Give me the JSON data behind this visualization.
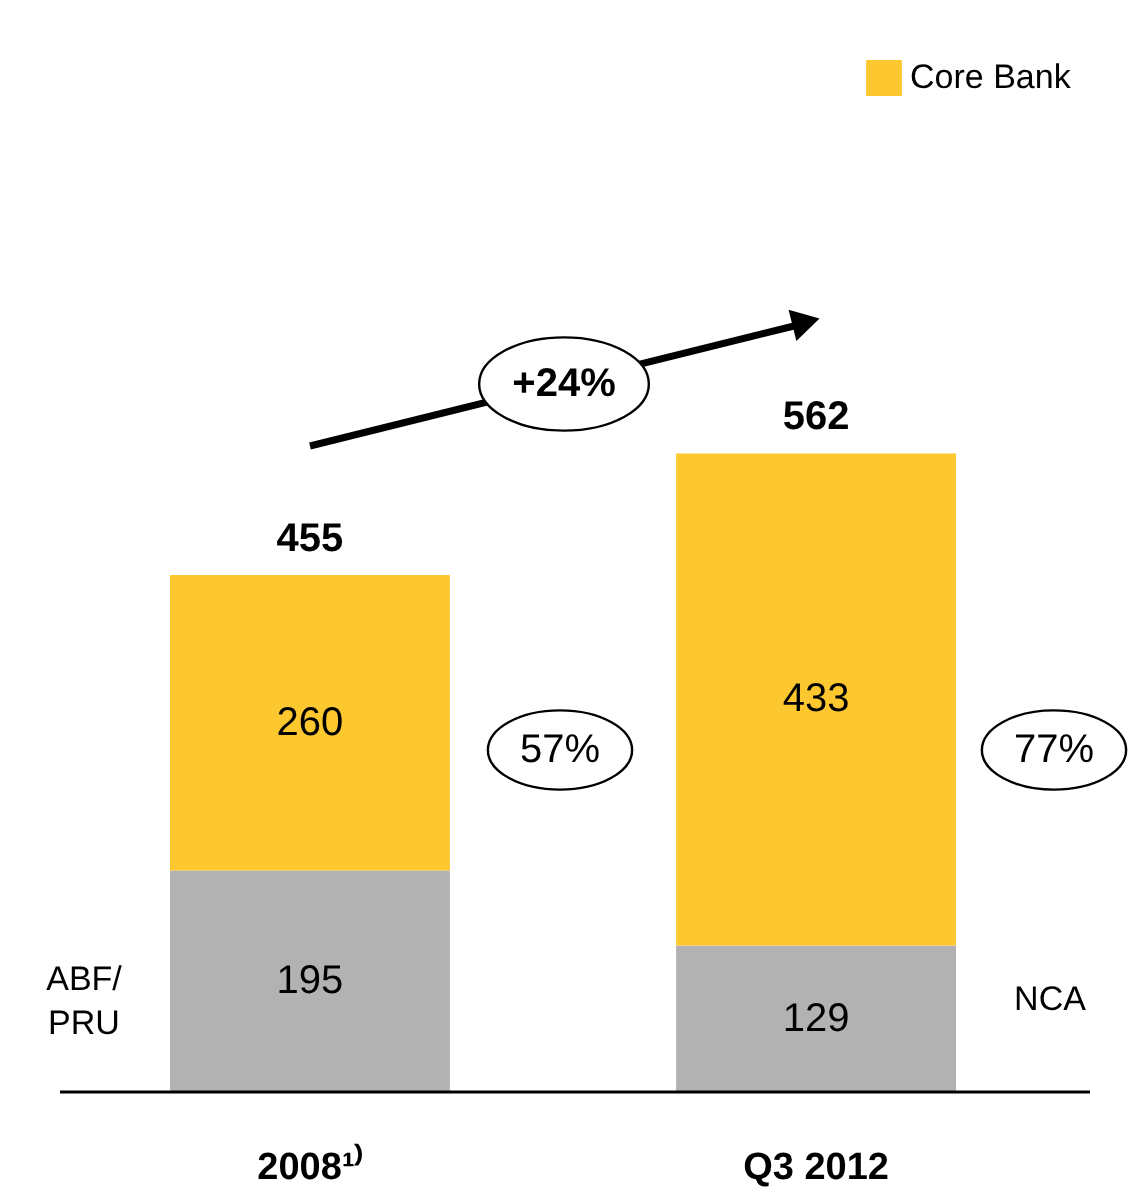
{
  "chart_data": {
    "type": "bar",
    "stacked": true,
    "categories": [
      "2008¹⁾",
      "Q3 2012"
    ],
    "series": [
      {
        "color": "#b2b2b2",
        "values": [
          195,
          129
        ]
      },
      {
        "name": "Core Bank",
        "color": "#fdc82f",
        "values": [
          260,
          433
        ]
      }
    ],
    "data_labels": true,
    "totals": [
      "455",
      "562"
    ],
    "legend": "top right",
    "annotations": [
      "+24%",
      "57%",
      "77%",
      "ABF/\nPRU",
      "NCA"
    ]
  }
}
